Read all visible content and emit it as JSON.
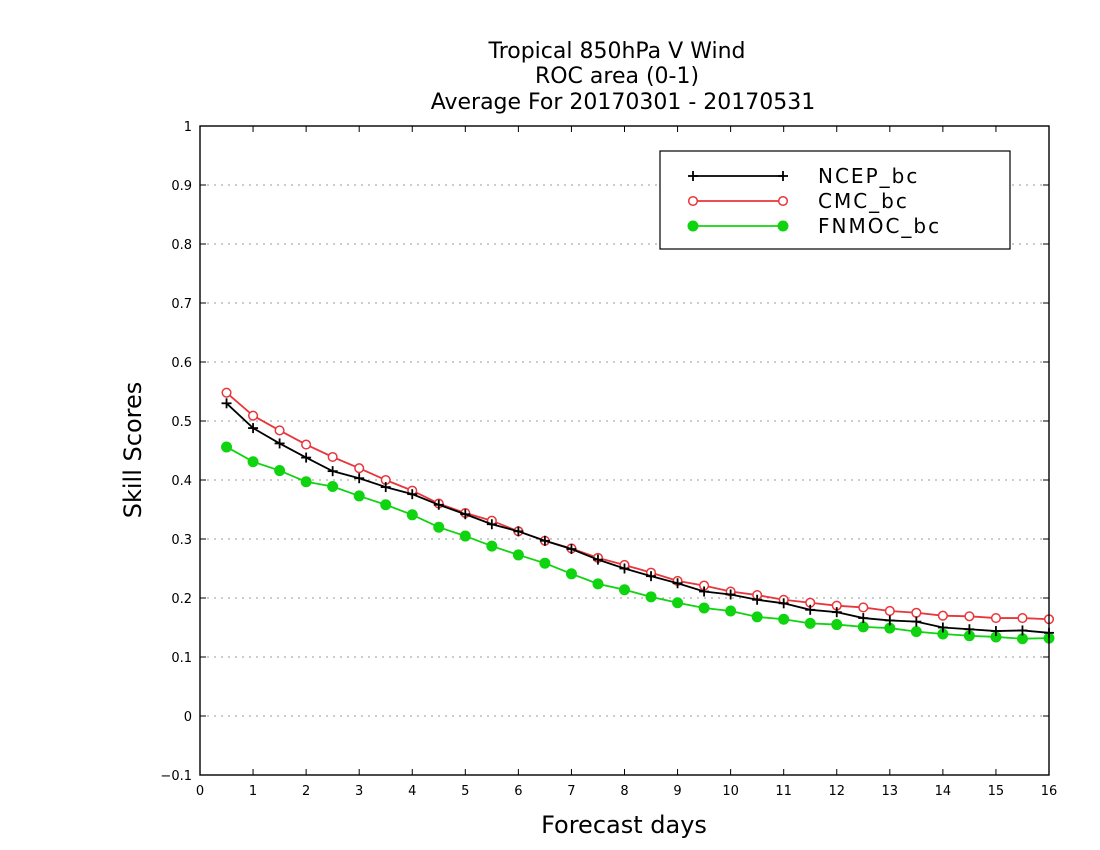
{
  "chart_data": {
    "type": "line",
    "title_lines": [
      "Tropical 850hPa V Wind",
      "ROC area (0-1)",
      "Average For 20170301 - 20170531"
    ],
    "xlabel": "Forecast days",
    "ylabel": "Skill Scores",
    "xlim": [
      0,
      16
    ],
    "ylim": [
      -0.1,
      1
    ],
    "grid": true,
    "legend_position": "top-right",
    "x_ticks": [
      "0",
      "1",
      "2",
      "3",
      "4",
      "5",
      "6",
      "7",
      "8",
      "9",
      "10",
      "11",
      "12",
      "13",
      "14",
      "15",
      "16"
    ],
    "y_ticks": [
      "−0.1",
      "0",
      "0.1",
      "0.2",
      "0.3",
      "0.4",
      "0.5",
      "0.6",
      "0.7",
      "0.8",
      "0.9",
      "1"
    ],
    "x": [
      0.5,
      1,
      1.5,
      2,
      2.5,
      3,
      3.5,
      4,
      4.5,
      5,
      5.5,
      6,
      6.5,
      7,
      7.5,
      8,
      8.5,
      9,
      9.5,
      10,
      10.5,
      11,
      11.5,
      12,
      12.5,
      13,
      13.5,
      14,
      14.5,
      15,
      15.5,
      16
    ],
    "series": [
      {
        "name": "NCEP_bc",
        "color": "#000000",
        "marker": "plus",
        "values": [
          0.53,
          0.488,
          0.462,
          0.438,
          0.415,
          0.403,
          0.388,
          0.376,
          0.358,
          0.342,
          0.325,
          0.313,
          0.297,
          0.283,
          0.265,
          0.25,
          0.237,
          0.225,
          0.211,
          0.206,
          0.197,
          0.191,
          0.18,
          0.176,
          0.166,
          0.162,
          0.16,
          0.15,
          0.147,
          0.144,
          0.145,
          0.141
        ]
      },
      {
        "name": "CMC_bc",
        "color": "#e8363a",
        "marker": "open-circle",
        "values": [
          0.548,
          0.509,
          0.484,
          0.46,
          0.439,
          0.42,
          0.4,
          0.382,
          0.36,
          0.344,
          0.331,
          0.313,
          0.297,
          0.284,
          0.268,
          0.256,
          0.243,
          0.229,
          0.221,
          0.211,
          0.205,
          0.197,
          0.192,
          0.187,
          0.184,
          0.178,
          0.175,
          0.17,
          0.169,
          0.166,
          0.166,
          0.164
        ]
      },
      {
        "name": "FNMOC_bc",
        "color": "#0fd40f",
        "marker": "filled-circle",
        "values": [
          0.456,
          0.431,
          0.416,
          0.397,
          0.389,
          0.373,
          0.358,
          0.341,
          0.32,
          0.305,
          0.288,
          0.273,
          0.259,
          0.241,
          0.224,
          0.214,
          0.202,
          0.192,
          0.183,
          0.178,
          0.168,
          0.164,
          0.157,
          0.155,
          0.151,
          0.149,
          0.143,
          0.139,
          0.136,
          0.134,
          0.131,
          0.132
        ]
      }
    ]
  }
}
